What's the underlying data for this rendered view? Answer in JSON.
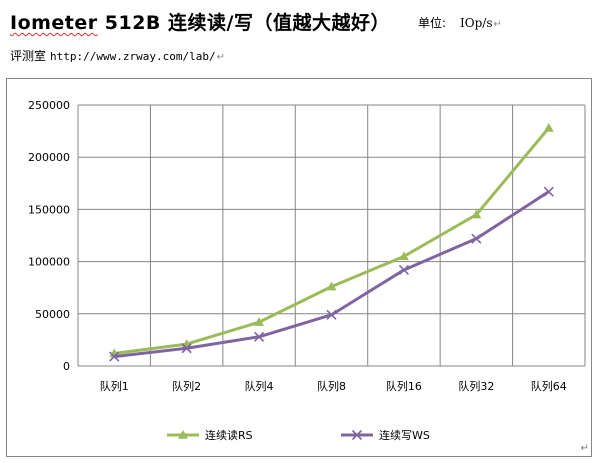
{
  "header": {
    "title_brand": "Iometer",
    "title_rest": " 512B 连续读/写（值越大越好）",
    "unit_label": "单位:",
    "unit_value": "IOp/s",
    "return_mark": "↵"
  },
  "source": {
    "label": "评测室",
    "url": "http://www.zrway.com/lab/"
  },
  "chart_data": {
    "type": "line",
    "title": "",
    "xlabel": "",
    "ylabel": "",
    "categories": [
      "队列1",
      "队列2",
      "队列4",
      "队列8",
      "队列16",
      "队列32",
      "队列64"
    ],
    "ylim": [
      0,
      250000
    ],
    "yticks": [
      0,
      50000,
      100000,
      150000,
      200000,
      250000
    ],
    "grid": true,
    "legend_position": "bottom",
    "series": [
      {
        "name": "连续读RS",
        "color": "#9bbb59",
        "marker": "triangle",
        "values": [
          12000,
          21000,
          42000,
          76000,
          105000,
          145000,
          228000
        ]
      },
      {
        "name": "连续写WS",
        "color": "#8064a2",
        "marker": "x",
        "values": [
          9000,
          17000,
          28000,
          49000,
          92000,
          122000,
          167000
        ]
      }
    ]
  }
}
